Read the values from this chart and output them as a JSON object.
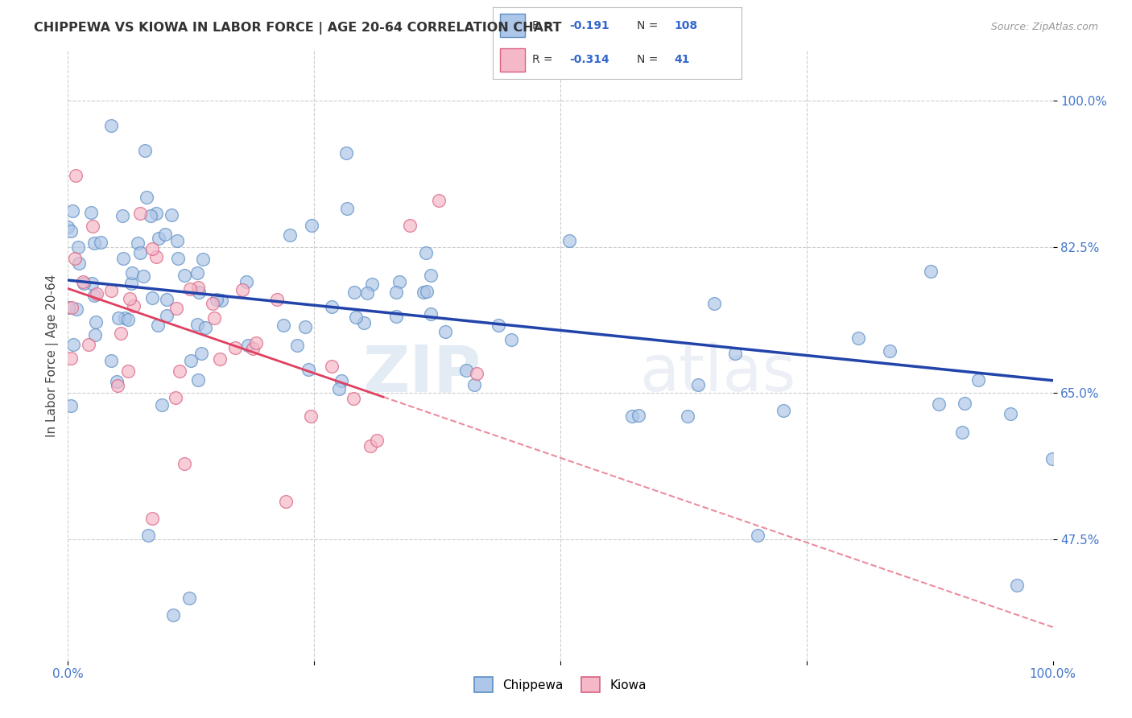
{
  "title": "CHIPPEWA VS KIOWA IN LABOR FORCE | AGE 20-64 CORRELATION CHART",
  "source": "Source: ZipAtlas.com",
  "ylabel": "In Labor Force | Age 20-64",
  "xlim": [
    0.0,
    1.0
  ],
  "ylim": [
    0.33,
    1.06
  ],
  "ytick_positions": [
    0.475,
    0.65,
    0.825,
    1.0
  ],
  "ytick_labels": [
    "47.5%",
    "65.0%",
    "82.5%",
    "100.0%"
  ],
  "chippewa_color": "#aec6e8",
  "kiowa_color": "#f5b8c8",
  "chippewa_edge": "#5b8ec4",
  "kiowa_edge": "#d96080",
  "trend_blue": "#2244aa",
  "trend_pink": "#e04060",
  "legend_R_chippewa": "-0.191",
  "legend_N_chippewa": "108",
  "legend_R_kiowa": "-0.314",
  "legend_N_kiowa": "41",
  "watermark_zip": "ZIP",
  "watermark_atlas": "atlas",
  "grid_color": "#c8c8c8",
  "background_color": "#ffffff",
  "blue_trend_x0": 0.0,
  "blue_trend_y0": 0.785,
  "blue_trend_x1": 1.0,
  "blue_trend_y1": 0.665,
  "pink_trend_x0": 0.0,
  "pink_trend_y0": 0.775,
  "pink_trend_x1": 1.0,
  "pink_trend_y1": 0.37
}
